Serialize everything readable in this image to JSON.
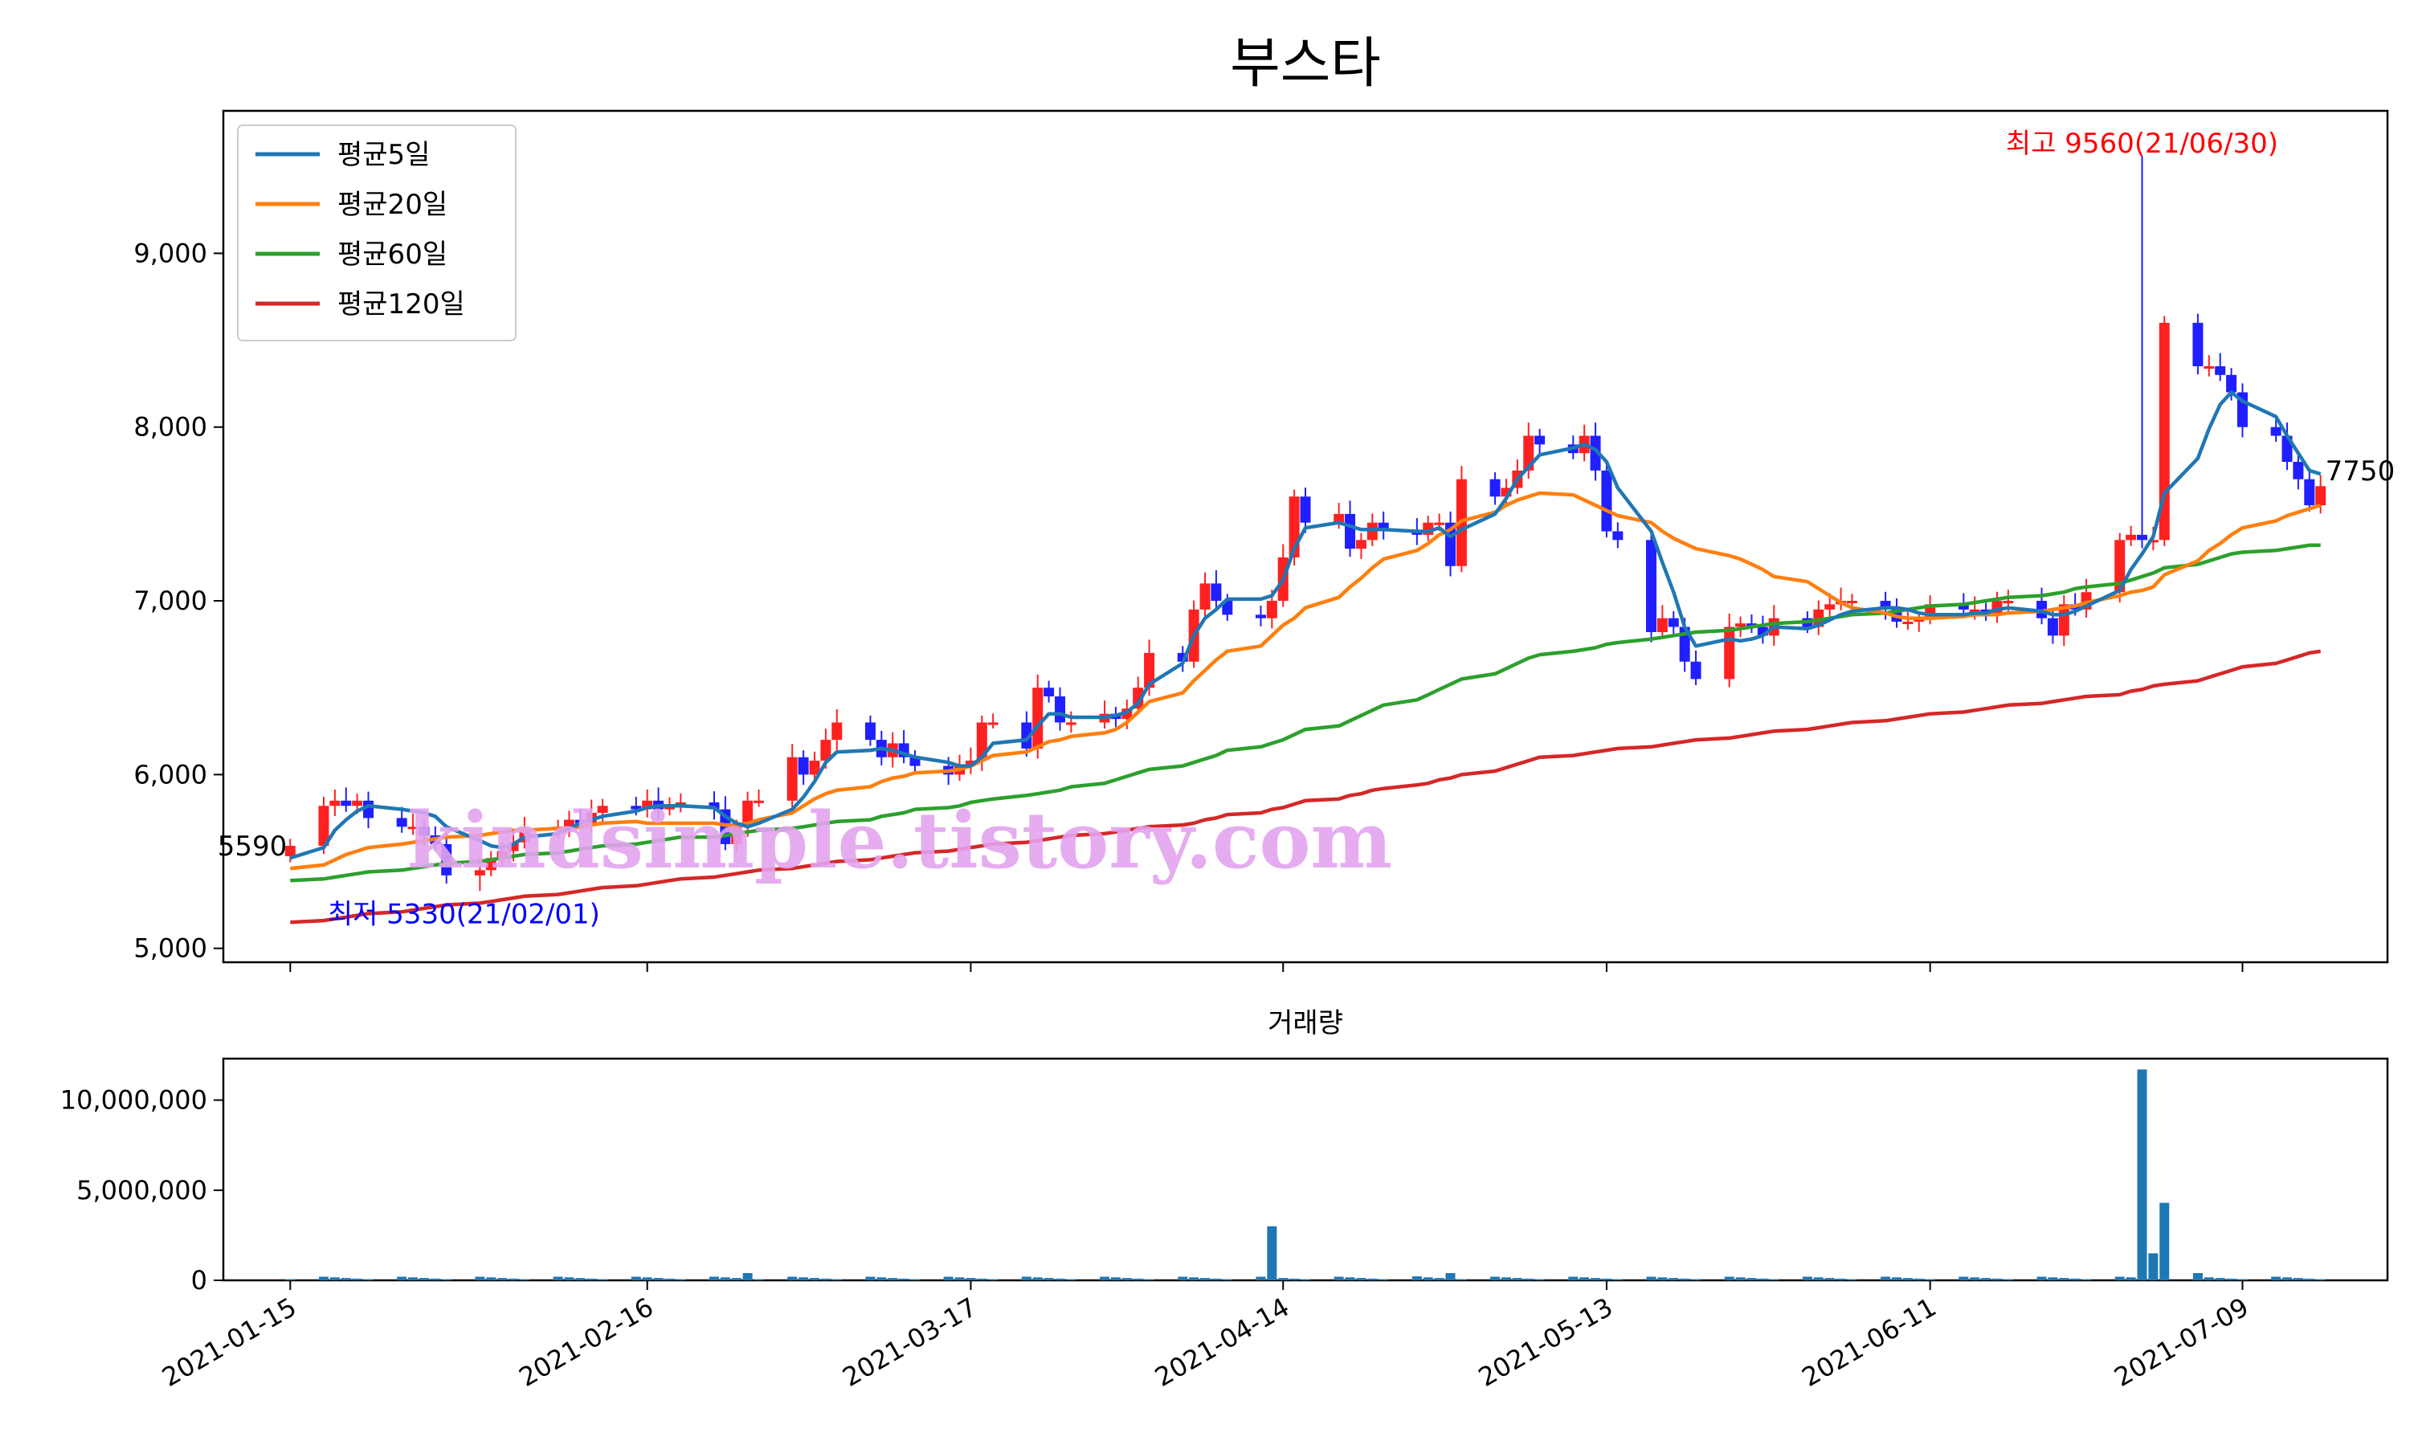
{
  "chart_data": [
    {
      "type": "candlestick",
      "title": "부스타",
      "ylim": [
        4920,
        9820
      ],
      "yticks": [
        5000,
        6000,
        7000,
        8000,
        9000
      ],
      "ytick_labels": [
        "5,000",
        "6,000",
        "7,000",
        "8,000",
        "9,000"
      ],
      "x_start": "2021-01-15",
      "x_end": "2021-07-16",
      "xticks": [
        "2021-01-15",
        "2021-02-16",
        "2021-03-17",
        "2021-04-14",
        "2021-05-13",
        "2021-06-11",
        "2021-07-09"
      ],
      "grid": false,
      "legend": {
        "position": "top-left",
        "entries": [
          {
            "label": "평균5일",
            "color": "#1f77b4"
          },
          {
            "label": "평균20일",
            "color": "#ff7f0e"
          },
          {
            "label": "평균60일",
            "color": "#2ca02c"
          },
          {
            "label": "평균120일",
            "color": "#d62728"
          }
        ]
      },
      "up_color": "#ff2020",
      "down_color": "#1f1fff",
      "annotations": {
        "high": {
          "text": "최고 9560(21/06/30)",
          "value": 9560,
          "color": "#ff0000"
        },
        "low": {
          "text": "최저 5330(21/02/01)",
          "value": 5330,
          "color": "#0000ff"
        },
        "first_close": {
          "text": "5590",
          "value": 5590
        },
        "last_close": {
          "text": "7750",
          "value": 7750
        }
      },
      "watermark": "kindsimple.tistory.com",
      "candle_closes": [
        5590,
        5820,
        5850,
        5820,
        5850,
        5750,
        5700,
        5700,
        5650,
        5600,
        5420,
        5450,
        5520,
        5560,
        5610,
        5680,
        5700,
        5740,
        5720,
        5780,
        5820,
        5800,
        5850,
        5800,
        5830,
        5840,
        5800,
        5600,
        5700,
        5850,
        5850,
        6100,
        6000,
        6080,
        6200,
        6300,
        6200,
        6100,
        6180,
        6100,
        6050,
        6000,
        6050,
        6080,
        6300,
        6300,
        6150,
        6500,
        6450,
        6300,
        6300,
        6350,
        6320,
        6380,
        6500,
        6700,
        6650,
        6950,
        7100,
        7000,
        6920,
        6900,
        7000,
        7250,
        7600,
        7450,
        7500,
        7300,
        7350,
        7450,
        7400,
        7380,
        7450,
        7450,
        7200,
        7700,
        7600,
        7650,
        7750,
        7950,
        7900,
        7850,
        7950,
        7750,
        7400,
        7350,
        6820,
        6900,
        6850,
        6650,
        6550,
        6850,
        6870,
        6850,
        6800,
        6900,
        6850,
        6950,
        6980,
        7000,
        7000,
        6950,
        6880,
        6880,
        6900,
        6980,
        6950,
        6950,
        6920,
        7000,
        7000,
        6900,
        6800,
        6980,
        6950,
        7050,
        7350,
        7380,
        7350,
        7350,
        8600,
        8350,
        8350,
        8300,
        8200,
        8000,
        7950,
        7800,
        7700,
        7550,
        7660,
        7850,
        7750
      ],
      "ma5": [
        5520,
        5580,
        5680,
        5740,
        5790,
        5820,
        5800,
        5790,
        5780,
        5760,
        5700,
        5620,
        5590,
        5580,
        5600,
        5640,
        5660,
        5690,
        5720,
        5740,
        5760,
        5790,
        5810,
        5820,
        5820,
        5820,
        5810,
        5760,
        5720,
        5700,
        5720,
        5800,
        5870,
        5960,
        6070,
        6130,
        6140,
        6150,
        6140,
        6120,
        6100,
        6070,
        6050,
        6050,
        6100,
        6180,
        6200,
        6280,
        6350,
        6350,
        6330,
        6330,
        6340,
        6360,
        6410,
        6520,
        6640,
        6800,
        6900,
        6950,
        7010,
        7010,
        7030,
        7120,
        7300,
        7420,
        7450,
        7430,
        7410,
        7410,
        7410,
        7400,
        7400,
        7420,
        7370,
        7410,
        7500,
        7590,
        7700,
        7770,
        7840,
        7880,
        7900,
        7870,
        7800,
        7650,
        7400,
        7220,
        7050,
        6850,
        6740,
        6780,
        6770,
        6780,
        6800,
        6850,
        6840,
        6860,
        6890,
        6920,
        6940,
        6960,
        6960,
        6950,
        6930,
        6920,
        6920,
        6930,
        6930,
        6950,
        6960,
        6940,
        6920,
        6920,
        6940,
        6970,
        7060,
        7180,
        7270,
        7370,
        7620,
        7820,
        7990,
        8130,
        8200,
        8150,
        8060,
        7950,
        7850,
        7750,
        7730,
        7760,
        7740
      ],
      "ma20": [
        5460,
        5480,
        5510,
        5540,
        5560,
        5580,
        5600,
        5610,
        5620,
        5630,
        5640,
        5650,
        5660,
        5670,
        5680,
        5680,
        5690,
        5690,
        5700,
        5710,
        5720,
        5730,
        5720,
        5720,
        5720,
        5720,
        5720,
        5710,
        5710,
        5720,
        5740,
        5780,
        5820,
        5860,
        5890,
        5910,
        5930,
        5960,
        5980,
        5990,
        6010,
        6020,
        6030,
        6050,
        6080,
        6110,
        6130,
        6160,
        6190,
        6200,
        6220,
        6240,
        6260,
        6300,
        6360,
        6420,
        6470,
        6540,
        6600,
        6660,
        6710,
        6740,
        6800,
        6860,
        6900,
        6960,
        7020,
        7080,
        7130,
        7190,
        7240,
        7290,
        7330,
        7380,
        7410,
        7460,
        7510,
        7550,
        7580,
        7600,
        7620,
        7610,
        7580,
        7550,
        7520,
        7490,
        7450,
        7400,
        7360,
        7330,
        7300,
        7260,
        7240,
        7210,
        7180,
        7140,
        7110,
        7070,
        7030,
        6990,
        6960,
        6930,
        6910,
        6900,
        6900,
        6900,
        6910,
        6920,
        6920,
        6920,
        6930,
        6940,
        6950,
        6960,
        6970,
        6990,
        7030,
        7050,
        7060,
        7080,
        7150,
        7230,
        7290,
        7330,
        7380,
        7420,
        7460,
        7490,
        7510,
        7530,
        7550,
        7580,
        7600
      ],
      "ma60": [
        5390,
        5400,
        5410,
        5420,
        5430,
        5440,
        5450,
        5460,
        5470,
        5480,
        5490,
        5500,
        5510,
        5520,
        5530,
        5540,
        5550,
        5560,
        5570,
        5580,
        5590,
        5600,
        5610,
        5620,
        5630,
        5640,
        5640,
        5650,
        5660,
        5670,
        5680,
        5690,
        5700,
        5710,
        5720,
        5730,
        5740,
        5760,
        5770,
        5780,
        5800,
        5810,
        5820,
        5840,
        5850,
        5860,
        5880,
        5890,
        5900,
        5910,
        5930,
        5950,
        5970,
        5990,
        6010,
        6030,
        6050,
        6070,
        6090,
        6110,
        6140,
        6160,
        6180,
        6200,
        6230,
        6260,
        6280,
        6310,
        6340,
        6370,
        6400,
        6430,
        6460,
        6490,
        6520,
        6550,
        6580,
        6610,
        6640,
        6670,
        6690,
        6710,
        6720,
        6730,
        6750,
        6760,
        6780,
        6790,
        6800,
        6810,
        6820,
        6830,
        6840,
        6850,
        6860,
        6870,
        6880,
        6890,
        6900,
        6910,
        6920,
        6930,
        6940,
        6950,
        6960,
        6970,
        6980,
        6990,
        7000,
        7010,
        7020,
        7030,
        7040,
        7050,
        7070,
        7080,
        7100,
        7120,
        7140,
        7160,
        7190,
        7210,
        7230,
        7250,
        7270,
        7280,
        7290,
        7300,
        7310,
        7320,
        7320,
        7330,
        7330
      ],
      "ma120": [
        5150,
        5160,
        5170,
        5180,
        5190,
        5200,
        5210,
        5220,
        5230,
        5240,
        5250,
        5260,
        5270,
        5280,
        5290,
        5300,
        5310,
        5320,
        5330,
        5340,
        5350,
        5360,
        5370,
        5380,
        5390,
        5400,
        5410,
        5420,
        5430,
        5440,
        5450,
        5460,
        5470,
        5480,
        5490,
        5500,
        5510,
        5520,
        5530,
        5540,
        5550,
        5560,
        5570,
        5580,
        5590,
        5600,
        5610,
        5620,
        5630,
        5640,
        5650,
        5660,
        5670,
        5680,
        5690,
        5700,
        5710,
        5720,
        5740,
        5750,
        5770,
        5780,
        5800,
        5810,
        5830,
        5850,
        5860,
        5880,
        5890,
        5910,
        5920,
        5940,
        5950,
        5970,
        5980,
        6000,
        6020,
        6040,
        6060,
        6080,
        6100,
        6110,
        6120,
        6130,
        6140,
        6150,
        6160,
        6170,
        6180,
        6190,
        6200,
        6210,
        6220,
        6230,
        6240,
        6250,
        6260,
        6270,
        6280,
        6290,
        6300,
        6310,
        6320,
        6330,
        6340,
        6350,
        6360,
        6370,
        6380,
        6390,
        6400,
        6410,
        6420,
        6430,
        6440,
        6450,
        6460,
        6480,
        6490,
        6510,
        6520,
        6540,
        6560,
        6580,
        6600,
        6620,
        6640,
        6660,
        6680,
        6700,
        6710,
        6730,
        6750
      ]
    },
    {
      "type": "bar",
      "title": "거래량",
      "ylim": [
        0,
        12300000
      ],
      "yticks": [
        0,
        5000000,
        10000000
      ],
      "ytick_labels": [
        "0",
        "5,000,000",
        "10,000,000"
      ],
      "x_start": "2021-01-15",
      "x_end": "2021-07-16",
      "xticks": [
        "2021-01-15",
        "2021-02-16",
        "2021-03-17",
        "2021-04-14",
        "2021-05-13",
        "2021-06-11",
        "2021-07-09"
      ],
      "color": "#1f77b4",
      "spikes": {
        "29": 400000,
        "62": 3000000,
        "71": 220000,
        "74": 400000,
        "118": 11700000,
        "119": 1500000,
        "120": 4300000,
        "121": 400000
      }
    }
  ]
}
